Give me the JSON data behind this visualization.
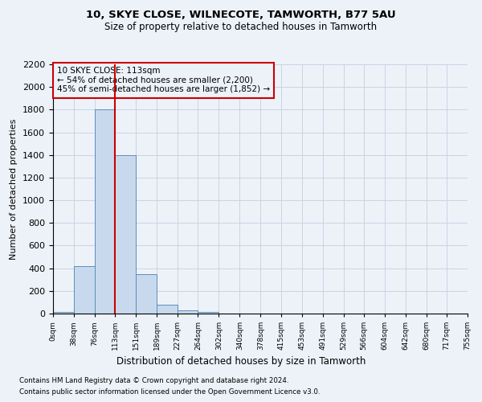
{
  "title1": "10, SKYE CLOSE, WILNECOTE, TAMWORTH, B77 5AU",
  "title2": "Size of property relative to detached houses in Tamworth",
  "xlabel": "Distribution of detached houses by size in Tamworth",
  "ylabel": "Number of detached properties",
  "property_size": 113,
  "bin_edges": [
    0,
    38,
    76,
    113,
    151,
    189,
    227,
    264,
    302,
    340,
    378,
    415,
    453,
    491,
    529,
    566,
    604,
    642,
    680,
    717,
    755
  ],
  "bar_heights": [
    15,
    420,
    1800,
    1400,
    350,
    75,
    25,
    15,
    0,
    0,
    0,
    0,
    0,
    0,
    0,
    0,
    0,
    0,
    0,
    0
  ],
  "bar_color": "#c9d9ed",
  "bar_edgecolor": "#5b8db8",
  "redline_color": "#cc0000",
  "annotation_text": "10 SKYE CLOSE: 113sqm\n← 54% of detached houses are smaller (2,200)\n45% of semi-detached houses are larger (1,852) →",
  "annotation_box_edgecolor": "#cc0000",
  "grid_color": "#c8d4e3",
  "ylim_max": 2200,
  "footnote1": "Contains HM Land Registry data © Crown copyright and database right 2024.",
  "footnote2": "Contains public sector information licensed under the Open Government Licence v3.0.",
  "bg_color": "#edf2f9"
}
